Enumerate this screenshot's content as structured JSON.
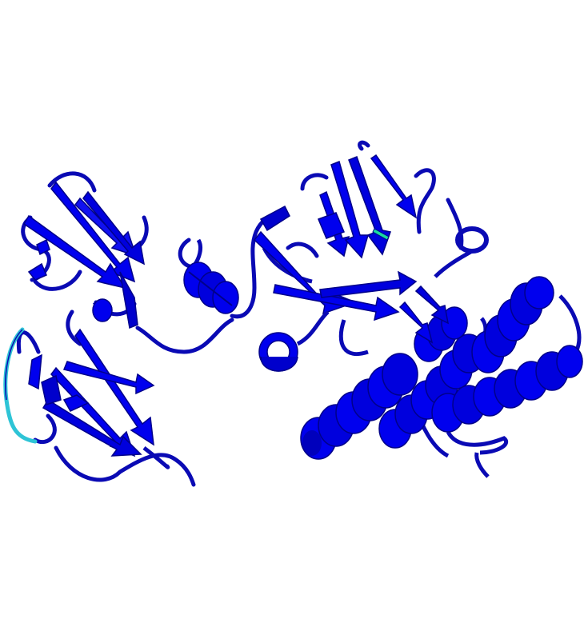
{
  "image": {
    "subject": "protein-cartoon-ribbon",
    "background_color": "#ffffff",
    "colors": {
      "ribbon": "#0000ee",
      "ribbon_shadow": "#00008a",
      "coil": "#0a0ab4",
      "highlight_segment": "#2ec4d6",
      "highlight_strand": "#19d9a0"
    }
  }
}
